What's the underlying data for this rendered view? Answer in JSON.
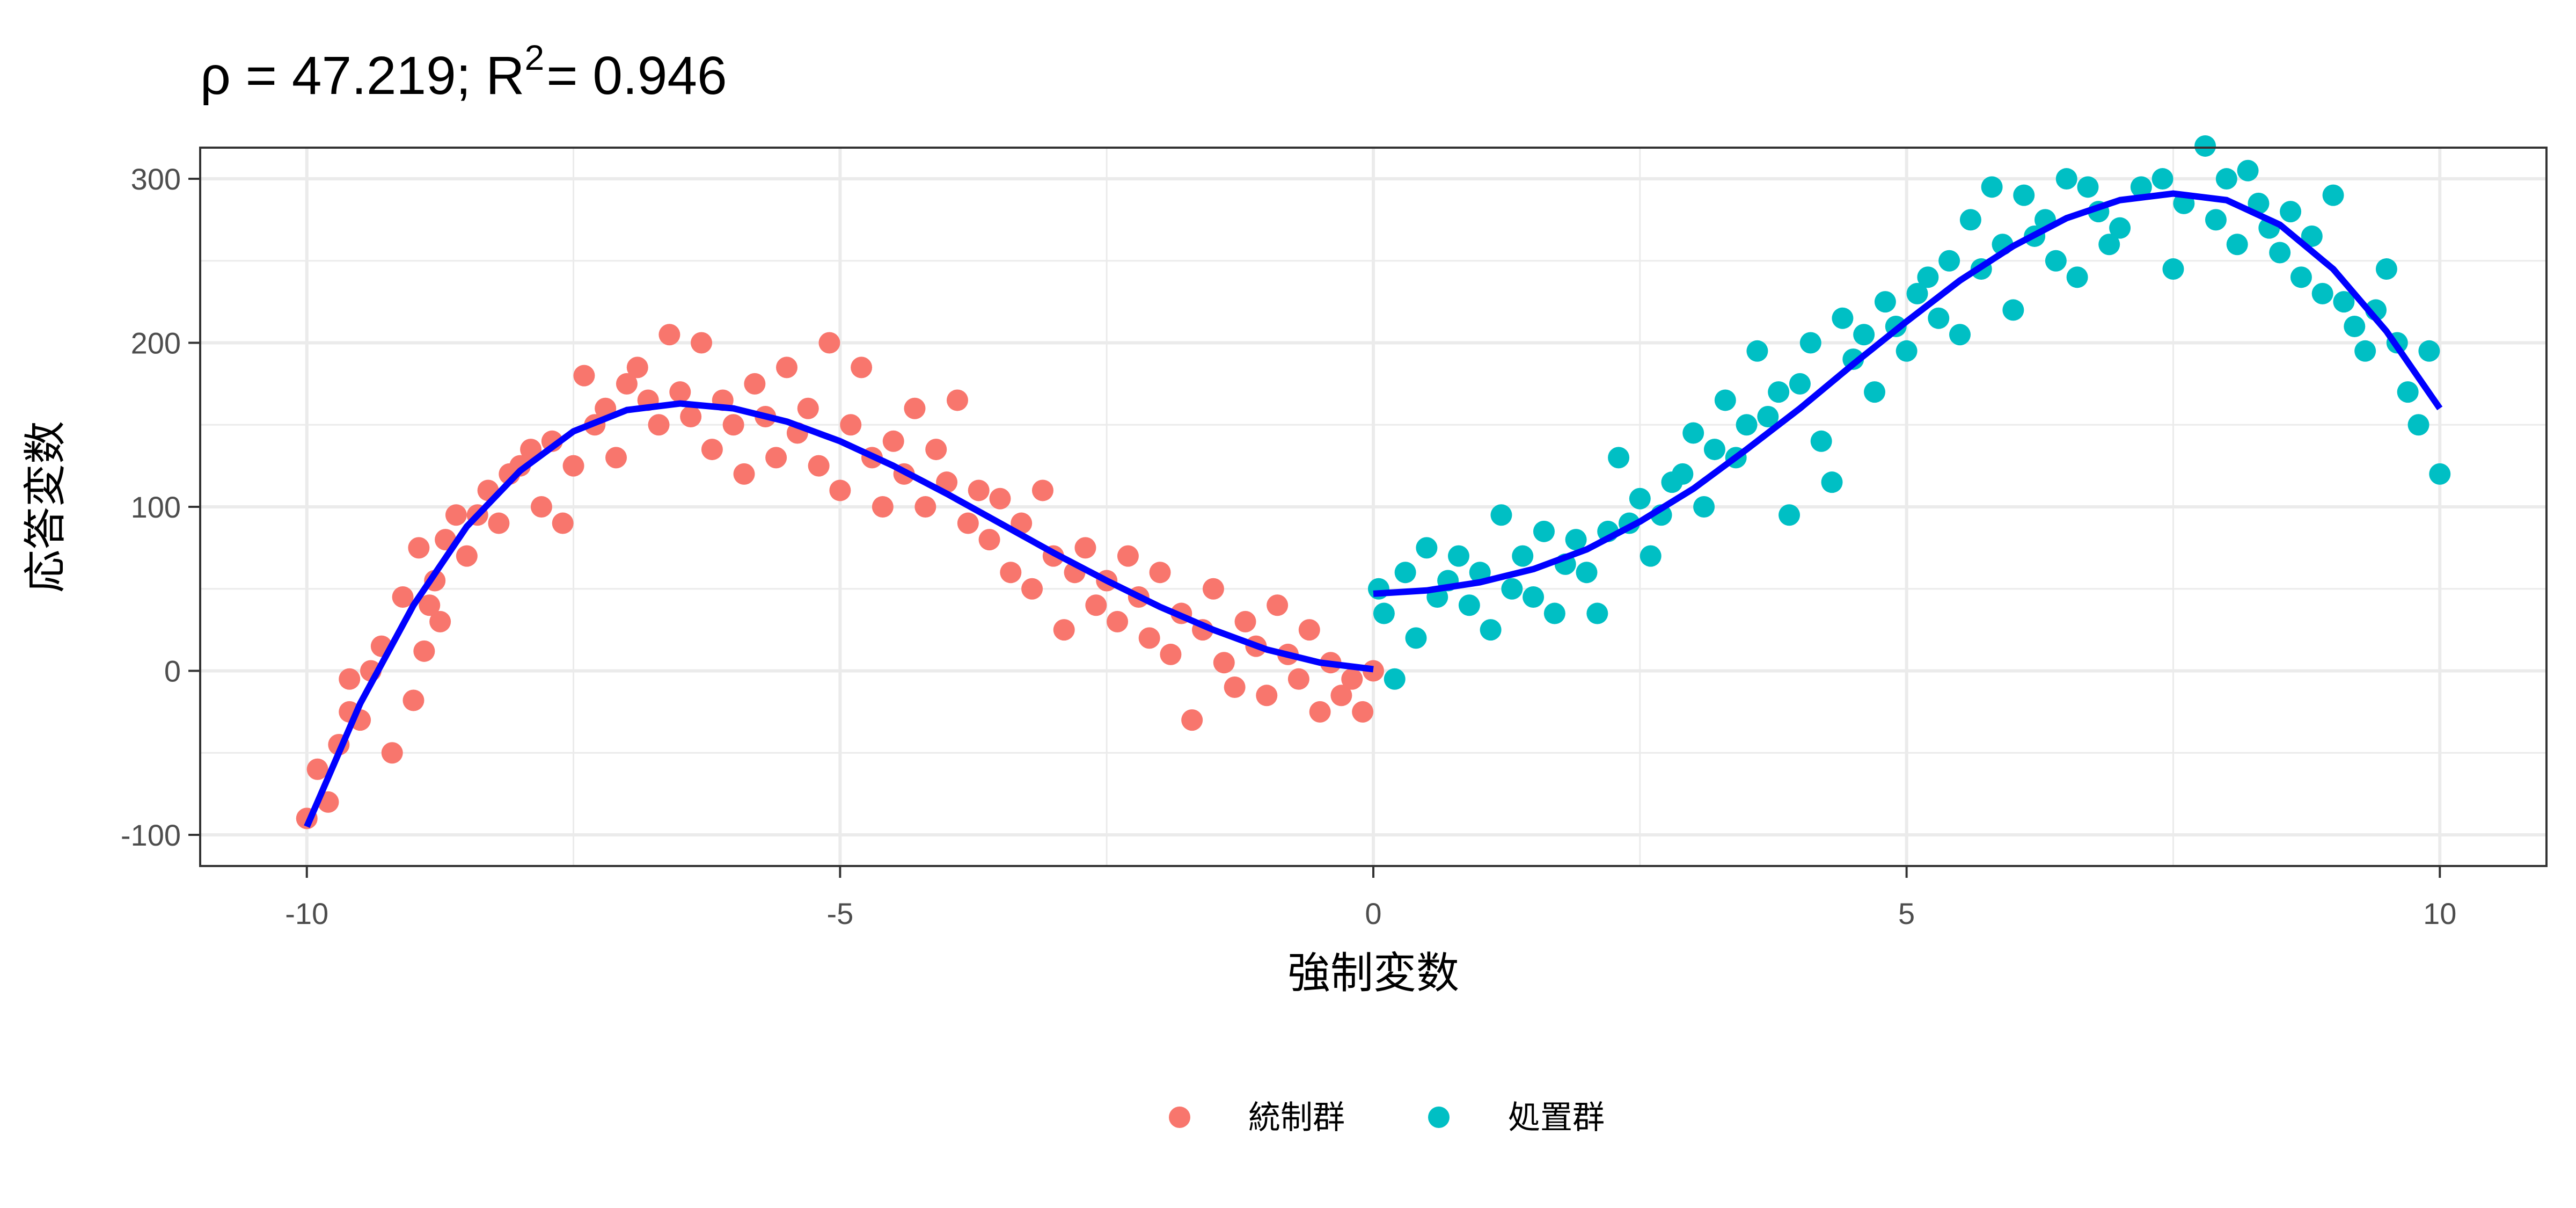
{
  "chart_data": {
    "type": "scatter",
    "title": {
      "main": "ρ = 47.219; R",
      "sup": "2",
      "tail": "= 0.946"
    },
    "xlabel": "強制変数",
    "ylabel": "応答変数",
    "xlim": [
      -11,
      11
    ],
    "ylim": [
      -119,
      319
    ],
    "x_ticks": [
      -10,
      -5,
      0,
      5,
      10
    ],
    "x_tick_labels": [
      "-10",
      "-5",
      "0",
      "5",
      "10"
    ],
    "x_minor": [
      -7.5,
      -2.5,
      2.5,
      7.5
    ],
    "y_ticks": [
      -100,
      0,
      100,
      200,
      300
    ],
    "y_tick_labels": [
      "-100",
      "0",
      "100",
      "200",
      "300"
    ],
    "y_minor": [
      -50,
      50,
      150,
      250
    ],
    "grid": true,
    "legend": {
      "position": "bottom",
      "entries": [
        "統制群",
        "処置群"
      ]
    },
    "colors": {
      "control": "#F8766D",
      "treatment": "#00BFC4",
      "fit": "#0000FF",
      "grid": "#EBEBEB",
      "border": "#333333"
    },
    "series": [
      {
        "name": "統制群",
        "points": [
          [
            -10,
            -90
          ],
          [
            -9.9,
            -60
          ],
          [
            -9.8,
            -80
          ],
          [
            -9.7,
            -45
          ],
          [
            -9.6,
            -25
          ],
          [
            -9.6,
            -5
          ],
          [
            -9.5,
            -30
          ],
          [
            -9.4,
            0
          ],
          [
            -9.3,
            15
          ],
          [
            -9.2,
            -50
          ],
          [
            -9.1,
            45
          ],
          [
            -9,
            -18
          ],
          [
            -8.95,
            75
          ],
          [
            -8.9,
            12
          ],
          [
            -8.85,
            40
          ],
          [
            -8.8,
            55
          ],
          [
            -8.75,
            30
          ],
          [
            -8.7,
            80
          ],
          [
            -8.6,
            95
          ],
          [
            -8.5,
            70
          ],
          [
            -8.4,
            95
          ],
          [
            -8.3,
            110
          ],
          [
            -8.2,
            90
          ],
          [
            -8.1,
            120
          ],
          [
            -8,
            125
          ],
          [
            -7.9,
            135
          ],
          [
            -7.8,
            100
          ],
          [
            -7.7,
            140
          ],
          [
            -7.6,
            90
          ],
          [
            -7.5,
            125
          ],
          [
            -7.4,
            180
          ],
          [
            -7.3,
            150
          ],
          [
            -7.2,
            160
          ],
          [
            -7.1,
            130
          ],
          [
            -7,
            175
          ],
          [
            -6.9,
            185
          ],
          [
            -6.8,
            165
          ],
          [
            -6.7,
            150
          ],
          [
            -6.6,
            205
          ],
          [
            -6.5,
            170
          ],
          [
            -6.4,
            155
          ],
          [
            -6.3,
            200
          ],
          [
            -6.2,
            135
          ],
          [
            -6.1,
            165
          ],
          [
            -6,
            150
          ],
          [
            -5.9,
            120
          ],
          [
            -5.8,
            175
          ],
          [
            -5.7,
            155
          ],
          [
            -5.6,
            130
          ],
          [
            -5.5,
            185
          ],
          [
            -5.4,
            145
          ],
          [
            -5.3,
            160
          ],
          [
            -5.2,
            125
          ],
          [
            -5.1,
            200
          ],
          [
            -5,
            110
          ],
          [
            -4.9,
            150
          ],
          [
            -4.8,
            185
          ],
          [
            -4.7,
            130
          ],
          [
            -4.6,
            100
          ],
          [
            -4.5,
            140
          ],
          [
            -4.4,
            120
          ],
          [
            -4.3,
            160
          ],
          [
            -4.2,
            100
          ],
          [
            -4.1,
            135
          ],
          [
            -4,
            115
          ],
          [
            -3.9,
            165
          ],
          [
            -3.8,
            90
          ],
          [
            -3.7,
            110
          ],
          [
            -3.6,
            80
          ],
          [
            -3.5,
            105
          ],
          [
            -3.4,
            60
          ],
          [
            -3.3,
            90
          ],
          [
            -3.2,
            50
          ],
          [
            -3.1,
            110
          ],
          [
            -3,
            70
          ],
          [
            -2.9,
            25
          ],
          [
            -2.8,
            60
          ],
          [
            -2.7,
            75
          ],
          [
            -2.6,
            40
          ],
          [
            -2.5,
            55
          ],
          [
            -2.4,
            30
          ],
          [
            -2.3,
            70
          ],
          [
            -2.2,
            45
          ],
          [
            -2.1,
            20
          ],
          [
            -2,
            60
          ],
          [
            -1.9,
            10
          ],
          [
            -1.8,
            35
          ],
          [
            -1.7,
            -30
          ],
          [
            -1.6,
            25
          ],
          [
            -1.5,
            50
          ],
          [
            -1.4,
            5
          ],
          [
            -1.3,
            -10
          ],
          [
            -1.2,
            30
          ],
          [
            -1.1,
            15
          ],
          [
            -1,
            -15
          ],
          [
            -0.9,
            40
          ],
          [
            -0.8,
            10
          ],
          [
            -0.7,
            -5
          ],
          [
            -0.6,
            25
          ],
          [
            -0.5,
            -25
          ],
          [
            -0.4,
            5
          ],
          [
            -0.3,
            -15
          ],
          [
            -0.2,
            -5
          ],
          [
            -0.1,
            -25
          ],
          [
            0,
            0
          ]
        ]
      },
      {
        "name": "処置群",
        "points": [
          [
            0.05,
            50
          ],
          [
            0.1,
            35
          ],
          [
            0.2,
            -5
          ],
          [
            0.3,
            60
          ],
          [
            0.4,
            20
          ],
          [
            0.5,
            75
          ],
          [
            0.6,
            45
          ],
          [
            0.7,
            55
          ],
          [
            0.8,
            70
          ],
          [
            0.9,
            40
          ],
          [
            1,
            60
          ],
          [
            1.1,
            25
          ],
          [
            1.2,
            95
          ],
          [
            1.3,
            50
          ],
          [
            1.4,
            70
          ],
          [
            1.5,
            45
          ],
          [
            1.6,
            85
          ],
          [
            1.7,
            35
          ],
          [
            1.8,
            65
          ],
          [
            1.9,
            80
          ],
          [
            2,
            60
          ],
          [
            2.1,
            35
          ],
          [
            2.2,
            85
          ],
          [
            2.3,
            130
          ],
          [
            2.4,
            90
          ],
          [
            2.5,
            105
          ],
          [
            2.6,
            70
          ],
          [
            2.7,
            95
          ],
          [
            2.8,
            115
          ],
          [
            2.9,
            120
          ],
          [
            3,
            145
          ],
          [
            3.1,
            100
          ],
          [
            3.2,
            135
          ],
          [
            3.3,
            165
          ],
          [
            3.4,
            130
          ],
          [
            3.5,
            150
          ],
          [
            3.6,
            195
          ],
          [
            3.7,
            155
          ],
          [
            3.8,
            170
          ],
          [
            3.9,
            95
          ],
          [
            4,
            175
          ],
          [
            4.1,
            200
          ],
          [
            4.2,
            140
          ],
          [
            4.3,
            115
          ],
          [
            4.4,
            215
          ],
          [
            4.5,
            190
          ],
          [
            4.6,
            205
          ],
          [
            4.7,
            170
          ],
          [
            4.8,
            225
          ],
          [
            4.9,
            210
          ],
          [
            5,
            195
          ],
          [
            5.1,
            230
          ],
          [
            5.2,
            240
          ],
          [
            5.3,
            215
          ],
          [
            5.4,
            250
          ],
          [
            5.5,
            205
          ],
          [
            5.6,
            275
          ],
          [
            5.7,
            245
          ],
          [
            5.8,
            295
          ],
          [
            5.9,
            260
          ],
          [
            6,
            220
          ],
          [
            6.1,
            290
          ],
          [
            6.2,
            265
          ],
          [
            6.3,
            275
          ],
          [
            6.4,
            250
          ],
          [
            6.5,
            300
          ],
          [
            6.6,
            240
          ],
          [
            6.7,
            295
          ],
          [
            6.8,
            280
          ],
          [
            6.9,
            260
          ],
          [
            7,
            270
          ],
          [
            7.2,
            295
          ],
          [
            7.4,
            300
          ],
          [
            7.5,
            245
          ],
          [
            7.6,
            285
          ],
          [
            7.8,
            320
          ],
          [
            7.9,
            275
          ],
          [
            8,
            300
          ],
          [
            8.1,
            260
          ],
          [
            8.2,
            305
          ],
          [
            8.3,
            285
          ],
          [
            8.4,
            270
          ],
          [
            8.5,
            255
          ],
          [
            8.6,
            280
          ],
          [
            8.7,
            240
          ],
          [
            8.8,
            265
          ],
          [
            8.9,
            230
          ],
          [
            9,
            290
          ],
          [
            9.1,
            225
          ],
          [
            9.2,
            210
          ],
          [
            9.3,
            195
          ],
          [
            9.4,
            220
          ],
          [
            9.5,
            245
          ],
          [
            9.6,
            200
          ],
          [
            9.7,
            170
          ],
          [
            9.8,
            150
          ],
          [
            9.9,
            195
          ],
          [
            10,
            120
          ]
        ]
      }
    ],
    "fits": [
      {
        "name": "統制群 fit",
        "points": [
          [
            -10,
            -95
          ],
          [
            -9.5,
            -20
          ],
          [
            -9,
            40
          ],
          [
            -8.5,
            88
          ],
          [
            -8,
            122
          ],
          [
            -7.5,
            146
          ],
          [
            -7,
            159
          ],
          [
            -6.5,
            163
          ],
          [
            -6,
            160
          ],
          [
            -5.5,
            152
          ],
          [
            -5,
            140
          ],
          [
            -4.5,
            125
          ],
          [
            -4,
            108
          ],
          [
            -3.5,
            90
          ],
          [
            -3,
            72
          ],
          [
            -2.5,
            55
          ],
          [
            -2,
            39
          ],
          [
            -1.5,
            25
          ],
          [
            -1,
            13
          ],
          [
            -0.5,
            5
          ],
          [
            0,
            1
          ]
        ]
      },
      {
        "name": "処置群 fit",
        "points": [
          [
            0,
            47
          ],
          [
            0.5,
            49
          ],
          [
            1,
            54
          ],
          [
            1.5,
            62
          ],
          [
            2,
            74
          ],
          [
            2.5,
            91
          ],
          [
            3,
            111
          ],
          [
            3.5,
            135
          ],
          [
            4,
            160
          ],
          [
            4.5,
            187
          ],
          [
            5,
            213
          ],
          [
            5.5,
            238
          ],
          [
            6,
            259
          ],
          [
            6.5,
            276
          ],
          [
            7,
            287
          ],
          [
            7.5,
            291
          ],
          [
            8,
            287
          ],
          [
            8.5,
            272
          ],
          [
            9,
            245
          ],
          [
            9.5,
            207
          ],
          [
            10,
            160
          ]
        ]
      }
    ]
  }
}
